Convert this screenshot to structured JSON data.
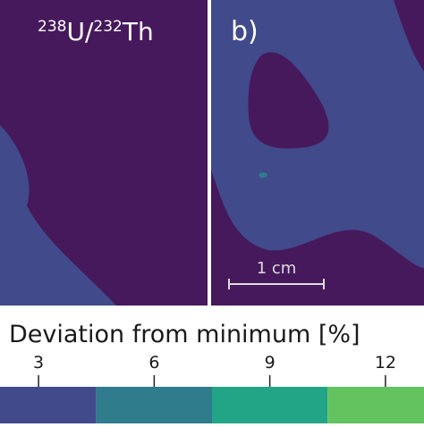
{
  "figure": {
    "panel_a_label": [
      "238",
      "U/",
      "232",
      "Th"
    ],
    "panel_b_label": "b)",
    "scale_bar": "1 cm"
  },
  "chart_data": {
    "type": "colorbar",
    "title": "Deviation from minimum [%]",
    "xlim": [
      2,
      13
    ],
    "xticks": [
      3,
      6,
      9,
      12
    ],
    "bins": [
      2,
      4.5,
      7.5,
      10.5,
      13
    ],
    "colors": [
      "#414a8b",
      "#2f7c8d",
      "#22a586",
      "#62c35f"
    ]
  }
}
